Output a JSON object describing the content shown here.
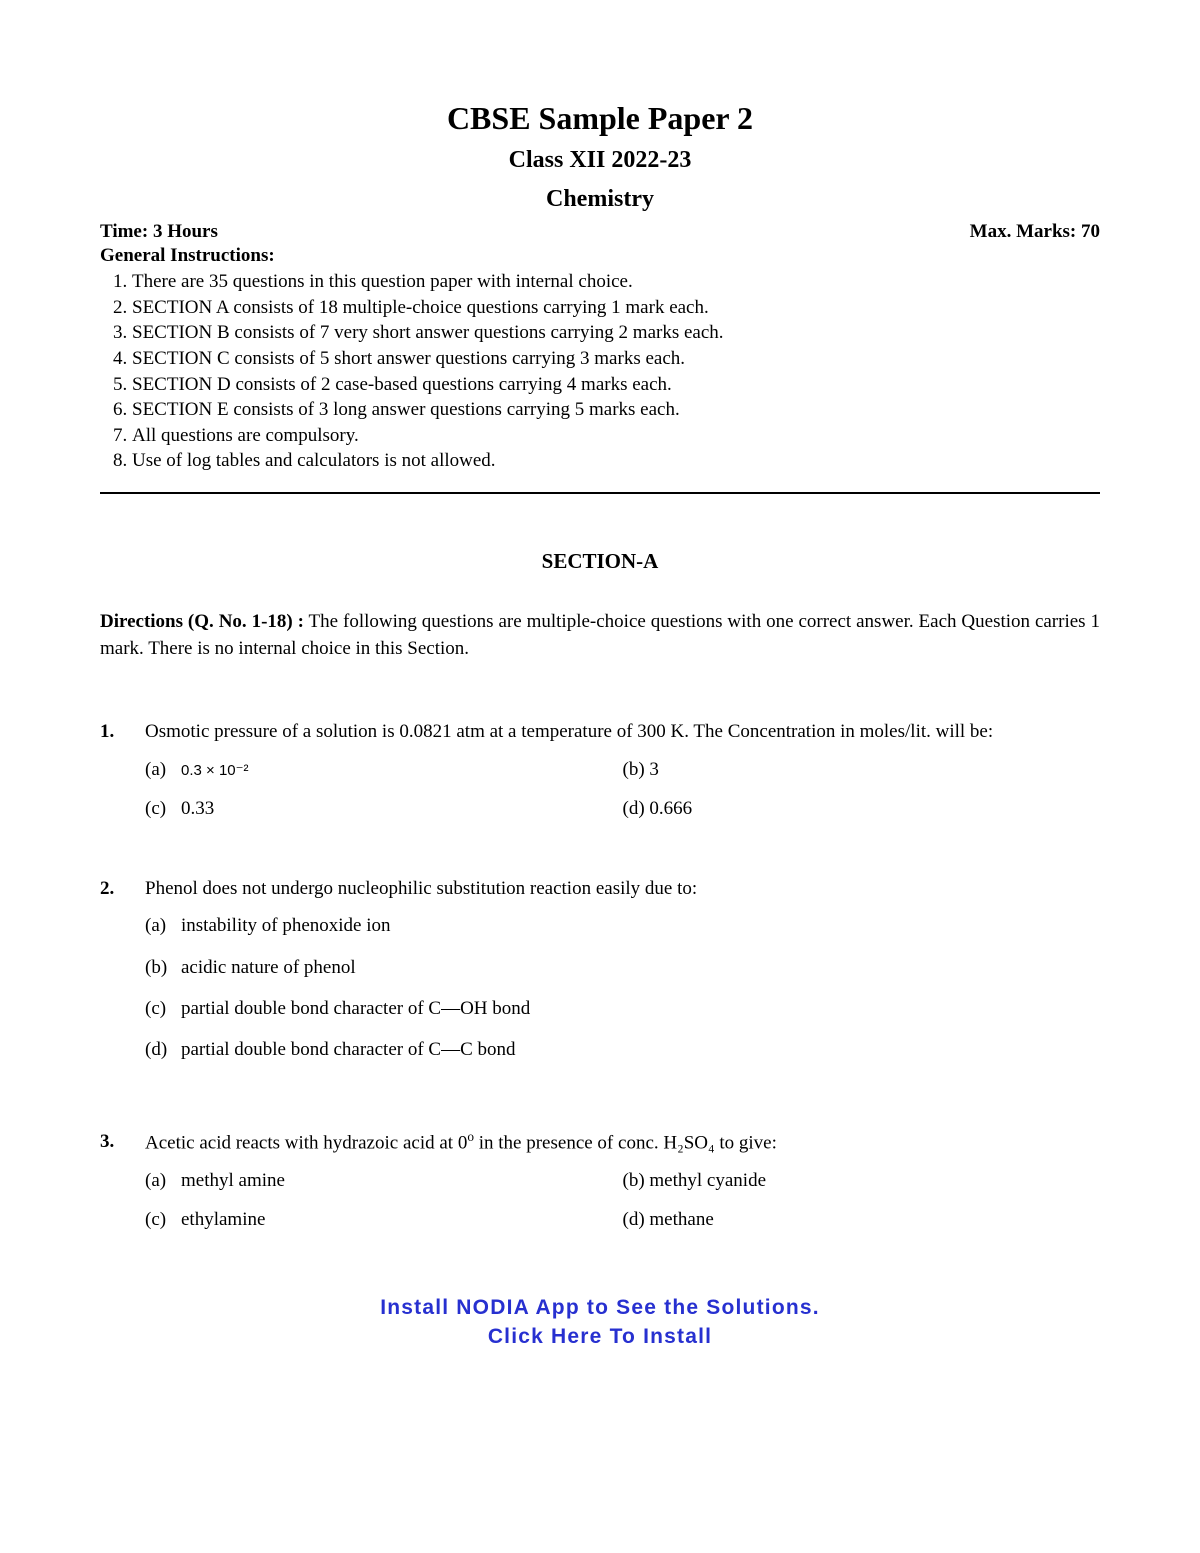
{
  "title_main": "CBSE Sample Paper 2",
  "title_sub": "Class XII 2022-23",
  "title_subject": "Chemistry",
  "time_label": "Time: 3 Hours",
  "marks_label": "Max. Marks: 70",
  "general_label": "General Instructions:",
  "instructions": [
    "There are 35 questions in this question paper with internal choice.",
    "SECTION A consists of 18 multiple-choice questions carrying 1 mark each.",
    "SECTION B consists of 7 very short answer questions carrying 2 marks each.",
    "SECTION C consists of 5 short answer questions carrying 3 marks each.",
    "SECTION D consists of 2 case-based questions carrying 4 marks each.",
    "SECTION E consists of 3 long answer questions carrying 5 marks each.",
    "All questions are compulsory.",
    "Use of log tables and calculators is not allowed."
  ],
  "section_heading": "SECTION-A",
  "directions_bold": "Directions (Q. No. 1-18) :",
  "directions_text": " The following questions are multiple-choice questions with one correct answer. Each Question carries 1 mark. There is no internal choice in this Section.",
  "q1": {
    "num": "1.",
    "text": "Osmotic pressure of a solution is 0.0821 atm at a temperature of 300 K. The Concentration in moles/lit. will be:",
    "a": "(a)",
    "a_val": "0.3 × 10⁻²",
    "b": "(b) 3",
    "c": "(c)",
    "c_val": "0.33",
    "d": "(d) 0.666"
  },
  "q2": {
    "num": "2.",
    "text": "Phenol does not undergo nucleophilic substitution reaction easily due to:",
    "a_label": "(a)",
    "a": "instability of phenoxide ion",
    "b_label": "(b)",
    "b": "acidic nature of phenol",
    "c_label": "(c)",
    "c": "partial double bond character of C—OH bond",
    "d_label": "(d)",
    "d": "partial double bond character of C—C bond"
  },
  "q3": {
    "num": "3.",
    "text_pre": "Acetic acid reacts with hydrazoic acid at 0",
    "text_post": " in the presence of conc. H₂SO₄ to give:",
    "a": "(a)",
    "a_val": "methyl amine",
    "b": "(b) methyl cyanide",
    "c": "(c)",
    "c_val": "ethylamine",
    "d": "(d) methane"
  },
  "footer_line1": "Install NODIA App to See the Solutions.",
  "footer_line2": "Click Here To Install"
}
